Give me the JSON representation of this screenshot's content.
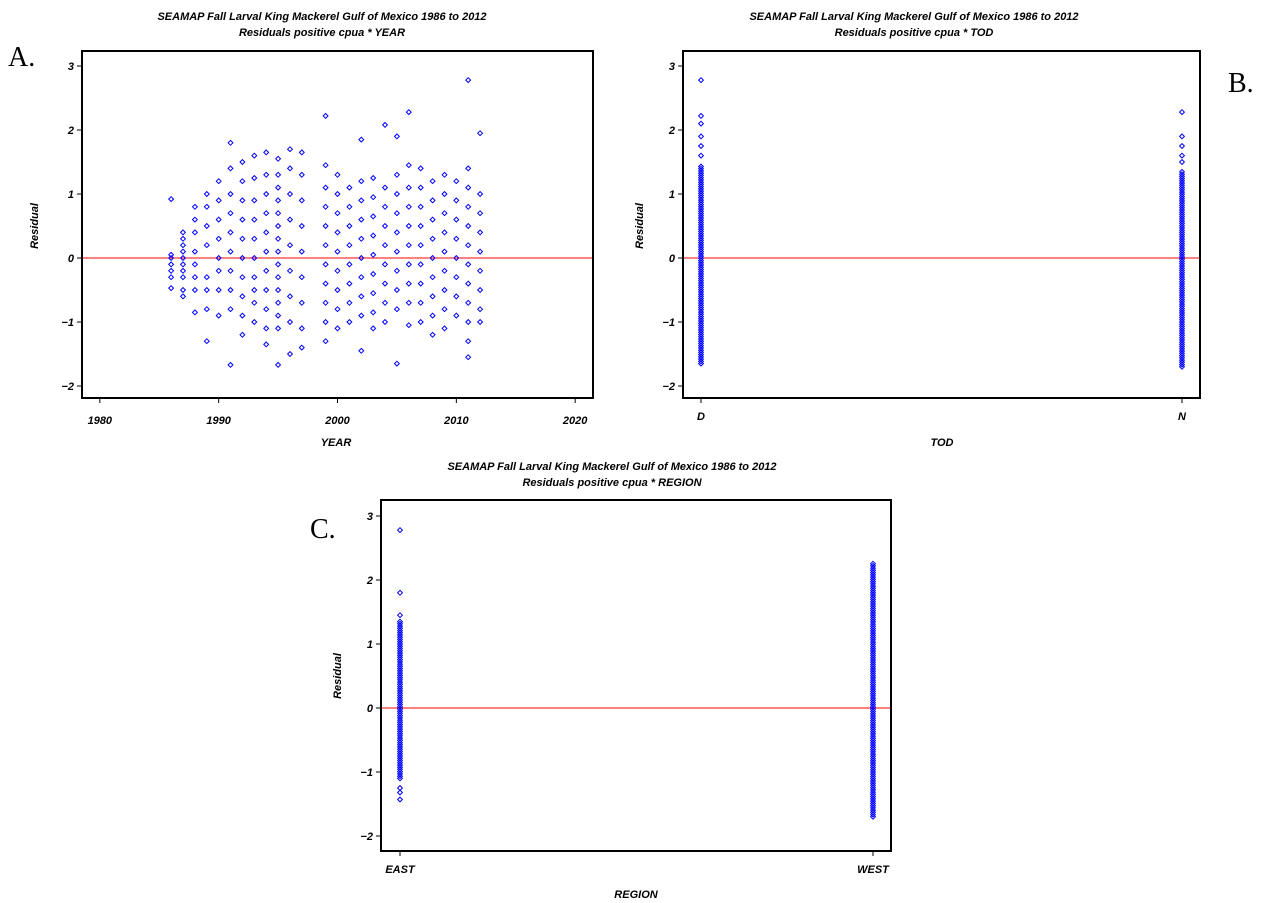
{
  "panel_labels": [
    "A.",
    "B.",
    "C."
  ],
  "colors": {
    "points": "#0000ff",
    "reference_line": "#ff0000",
    "frame": "#000000"
  },
  "chart_data": [
    {
      "type": "scatter",
      "title": "SEAMAP Fall Larval King Mackerel Gulf of Mexico 1986 to 2012",
      "subtitle": "Residuals positive cpua * YEAR",
      "xlabel": "YEAR",
      "ylabel": "Residual",
      "marker": "diamond-open",
      "xlim": [
        1978.5,
        2021.5
      ],
      "ylim": [
        -2.2,
        3.2
      ],
      "xticks": [
        1980,
        1990,
        2000,
        2010,
        2020
      ],
      "yticks": [
        -2,
        -1,
        0,
        1,
        2,
        3
      ],
      "reference_line_y": 0,
      "grid": false,
      "series": [
        {
          "points": [
            [
              1986,
              0.92
            ],
            [
              1986,
              0.05
            ],
            [
              1986,
              0.0
            ],
            [
              1986,
              -0.1
            ],
            [
              1986,
              -0.2
            ],
            [
              1986,
              -0.3
            ],
            [
              1986,
              -0.47
            ],
            [
              1987,
              0.4
            ],
            [
              1987,
              0.3
            ],
            [
              1987,
              0.2
            ],
            [
              1987,
              0.1
            ],
            [
              1987,
              0.0
            ],
            [
              1987,
              -0.1
            ],
            [
              1987,
              -0.2
            ],
            [
              1987,
              -0.3
            ],
            [
              1987,
              -0.5
            ],
            [
              1987,
              -0.6
            ],
            [
              1988,
              0.8
            ],
            [
              1988,
              0.6
            ],
            [
              1988,
              0.4
            ],
            [
              1988,
              0.1
            ],
            [
              1988,
              -0.1
            ],
            [
              1988,
              -0.3
            ],
            [
              1988,
              -0.5
            ],
            [
              1988,
              -0.85
            ],
            [
              1989,
              1.0
            ],
            [
              1989,
              0.8
            ],
            [
              1989,
              0.5
            ],
            [
              1989,
              0.2
            ],
            [
              1989,
              -0.3
            ],
            [
              1989,
              -0.5
            ],
            [
              1989,
              -0.8
            ],
            [
              1989,
              -1.3
            ],
            [
              1990,
              1.2
            ],
            [
              1990,
              0.9
            ],
            [
              1990,
              0.6
            ],
            [
              1990,
              0.3
            ],
            [
              1990,
              0.0
            ],
            [
              1990,
              -0.2
            ],
            [
              1990,
              -0.5
            ],
            [
              1990,
              -0.9
            ],
            [
              1991,
              1.8
            ],
            [
              1991,
              1.4
            ],
            [
              1991,
              1.0
            ],
            [
              1991,
              0.7
            ],
            [
              1991,
              0.4
            ],
            [
              1991,
              0.1
            ],
            [
              1991,
              -0.2
            ],
            [
              1991,
              -0.5
            ],
            [
              1991,
              -0.8
            ],
            [
              1991,
              -1.67
            ],
            [
              1992,
              1.5
            ],
            [
              1992,
              1.2
            ],
            [
              1992,
              0.9
            ],
            [
              1992,
              0.6
            ],
            [
              1992,
              0.3
            ],
            [
              1992,
              0.0
            ],
            [
              1992,
              -0.3
            ],
            [
              1992,
              -0.6
            ],
            [
              1992,
              -0.9
            ],
            [
              1992,
              -1.2
            ],
            [
              1993,
              1.6
            ],
            [
              1993,
              1.25
            ],
            [
              1993,
              0.9
            ],
            [
              1993,
              0.6
            ],
            [
              1993,
              0.3
            ],
            [
              1993,
              0.0
            ],
            [
              1993,
              -0.3
            ],
            [
              1993,
              -0.5
            ],
            [
              1993,
              -0.7
            ],
            [
              1993,
              -1.0
            ],
            [
              1994,
              1.65
            ],
            [
              1994,
              1.3
            ],
            [
              1994,
              1.0
            ],
            [
              1994,
              0.7
            ],
            [
              1994,
              0.4
            ],
            [
              1994,
              0.1
            ],
            [
              1994,
              -0.2
            ],
            [
              1994,
              -0.5
            ],
            [
              1994,
              -0.8
            ],
            [
              1994,
              -1.1
            ],
            [
              1994,
              -1.35
            ],
            [
              1995,
              1.55
            ],
            [
              1995,
              1.3
            ],
            [
              1995,
              1.1
            ],
            [
              1995,
              0.9
            ],
            [
              1995,
              0.7
            ],
            [
              1995,
              0.5
            ],
            [
              1995,
              0.3
            ],
            [
              1995,
              0.1
            ],
            [
              1995,
              -0.1
            ],
            [
              1995,
              -0.3
            ],
            [
              1995,
              -0.5
            ],
            [
              1995,
              -0.7
            ],
            [
              1995,
              -0.9
            ],
            [
              1995,
              -1.1
            ],
            [
              1995,
              -1.67
            ],
            [
              1996,
              1.7
            ],
            [
              1996,
              1.4
            ],
            [
              1996,
              1.0
            ],
            [
              1996,
              0.6
            ],
            [
              1996,
              0.2
            ],
            [
              1996,
              -0.2
            ],
            [
              1996,
              -0.6
            ],
            [
              1996,
              -1.0
            ],
            [
              1996,
              -1.5
            ],
            [
              1997,
              1.65
            ],
            [
              1997,
              1.3
            ],
            [
              1997,
              0.9
            ],
            [
              1997,
              0.5
            ],
            [
              1997,
              0.1
            ],
            [
              1997,
              -0.3
            ],
            [
              1997,
              -0.7
            ],
            [
              1997,
              -1.1
            ],
            [
              1997,
              -1.4
            ],
            [
              1999,
              2.22
            ],
            [
              1999,
              1.45
            ],
            [
              1999,
              1.1
            ],
            [
              1999,
              0.8
            ],
            [
              1999,
              0.5
            ],
            [
              1999,
              0.2
            ],
            [
              1999,
              -0.1
            ],
            [
              1999,
              -0.4
            ],
            [
              1999,
              -0.7
            ],
            [
              1999,
              -1.0
            ],
            [
              1999,
              -1.3
            ],
            [
              2000,
              1.3
            ],
            [
              2000,
              1.0
            ],
            [
              2000,
              0.7
            ],
            [
              2000,
              0.4
            ],
            [
              2000,
              0.1
            ],
            [
              2000,
              -0.2
            ],
            [
              2000,
              -0.5
            ],
            [
              2000,
              -0.8
            ],
            [
              2000,
              -1.1
            ],
            [
              2001,
              1.1
            ],
            [
              2001,
              0.8
            ],
            [
              2001,
              0.5
            ],
            [
              2001,
              0.2
            ],
            [
              2001,
              -0.1
            ],
            [
              2001,
              -0.4
            ],
            [
              2001,
              -0.7
            ],
            [
              2001,
              -1.0
            ],
            [
              2002,
              1.85
            ],
            [
              2002,
              1.2
            ],
            [
              2002,
              0.9
            ],
            [
              2002,
              0.6
            ],
            [
              2002,
              0.3
            ],
            [
              2002,
              0.0
            ],
            [
              2002,
              -0.3
            ],
            [
              2002,
              -0.6
            ],
            [
              2002,
              -0.9
            ],
            [
              2002,
              -1.45
            ],
            [
              2003,
              1.25
            ],
            [
              2003,
              0.95
            ],
            [
              2003,
              0.65
            ],
            [
              2003,
              0.35
            ],
            [
              2003,
              0.05
            ],
            [
              2003,
              -0.25
            ],
            [
              2003,
              -0.55
            ],
            [
              2003,
              -0.85
            ],
            [
              2003,
              -1.1
            ],
            [
              2004,
              2.08
            ],
            [
              2004,
              1.1
            ],
            [
              2004,
              0.8
            ],
            [
              2004,
              0.5
            ],
            [
              2004,
              0.2
            ],
            [
              2004,
              -0.1
            ],
            [
              2004,
              -0.4
            ],
            [
              2004,
              -0.7
            ],
            [
              2004,
              -1.0
            ],
            [
              2005,
              1.9
            ],
            [
              2005,
              1.3
            ],
            [
              2005,
              1.0
            ],
            [
              2005,
              0.7
            ],
            [
              2005,
              0.4
            ],
            [
              2005,
              0.1
            ],
            [
              2005,
              -0.2
            ],
            [
              2005,
              -0.5
            ],
            [
              2005,
              -0.8
            ],
            [
              2005,
              -1.65
            ],
            [
              2006,
              2.28
            ],
            [
              2006,
              1.45
            ],
            [
              2006,
              1.1
            ],
            [
              2006,
              0.8
            ],
            [
              2006,
              0.5
            ],
            [
              2006,
              0.2
            ],
            [
              2006,
              -0.1
            ],
            [
              2006,
              -0.4
            ],
            [
              2006,
              -0.7
            ],
            [
              2006,
              -1.05
            ],
            [
              2007,
              1.4
            ],
            [
              2007,
              1.1
            ],
            [
              2007,
              0.8
            ],
            [
              2007,
              0.5
            ],
            [
              2007,
              0.2
            ],
            [
              2007,
              -0.1
            ],
            [
              2007,
              -0.4
            ],
            [
              2007,
              -0.7
            ],
            [
              2007,
              -1.0
            ],
            [
              2008,
              1.2
            ],
            [
              2008,
              0.9
            ],
            [
              2008,
              0.6
            ],
            [
              2008,
              0.3
            ],
            [
              2008,
              0.0
            ],
            [
              2008,
              -0.3
            ],
            [
              2008,
              -0.6
            ],
            [
              2008,
              -0.9
            ],
            [
              2008,
              -1.2
            ],
            [
              2009,
              1.3
            ],
            [
              2009,
              1.0
            ],
            [
              2009,
              0.7
            ],
            [
              2009,
              0.4
            ],
            [
              2009,
              0.1
            ],
            [
              2009,
              -0.2
            ],
            [
              2009,
              -0.5
            ],
            [
              2009,
              -0.8
            ],
            [
              2009,
              -1.1
            ],
            [
              2010,
              1.2
            ],
            [
              2010,
              0.9
            ],
            [
              2010,
              0.6
            ],
            [
              2010,
              0.3
            ],
            [
              2010,
              0.0
            ],
            [
              2010,
              -0.3
            ],
            [
              2010,
              -0.6
            ],
            [
              2010,
              -0.9
            ],
            [
              2011,
              2.78
            ],
            [
              2011,
              1.4
            ],
            [
              2011,
              1.1
            ],
            [
              2011,
              0.8
            ],
            [
              2011,
              0.5
            ],
            [
              2011,
              0.2
            ],
            [
              2011,
              -0.1
            ],
            [
              2011,
              -0.4
            ],
            [
              2011,
              -0.7
            ],
            [
              2011,
              -1.0
            ],
            [
              2011,
              -1.3
            ],
            [
              2011,
              -1.55
            ],
            [
              2012,
              1.95
            ],
            [
              2012,
              1.0
            ],
            [
              2012,
              0.7
            ],
            [
              2012,
              0.4
            ],
            [
              2012,
              0.1
            ],
            [
              2012,
              -0.2
            ],
            [
              2012,
              -0.5
            ],
            [
              2012,
              -0.8
            ],
            [
              2012,
              -1.0
            ]
          ]
        }
      ]
    },
    {
      "type": "scatter",
      "title": "SEAMAP Fall Larval King Mackerel Gulf of Mexico 1986 to 2012",
      "subtitle": "Residuals positive cpua * TOD",
      "xlabel": "TOD",
      "ylabel": "Residual",
      "marker": "diamond-open",
      "categories": [
        "D",
        "N"
      ],
      "ylim": [
        -2.2,
        3.2
      ],
      "yticks": [
        -2,
        -1,
        0,
        1,
        2,
        3
      ],
      "reference_line_y": 0,
      "grid": false,
      "series": [
        {
          "category": "D",
          "ymin": -1.65,
          "ymax": 1.45,
          "outliers": [
            2.78,
            2.22,
            2.1,
            1.9,
            1.75,
            1.6
          ]
        },
        {
          "category": "N",
          "ymin": -1.7,
          "ymax": 1.35,
          "outliers": [
            2.28,
            1.9,
            1.75,
            1.6,
            1.5
          ]
        }
      ]
    },
    {
      "type": "scatter",
      "title": "SEAMAP Fall Larval King Mackerel Gulf of Mexico 1986 to 2012",
      "subtitle": "Residuals positive cpua * REGION",
      "xlabel": "REGION",
      "ylabel": "Residual",
      "marker": "diamond-open",
      "categories": [
        "EAST",
        "WEST"
      ],
      "ylim": [
        -2.2,
        3.2
      ],
      "yticks": [
        -2,
        -1,
        0,
        1,
        2,
        3
      ],
      "reference_line_y": 0,
      "grid": false,
      "series": [
        {
          "category": "EAST",
          "ymin": -1.1,
          "ymax": 1.35,
          "outliers": [
            2.78,
            1.8,
            1.45,
            -1.25,
            -1.32,
            -1.43
          ]
        },
        {
          "category": "WEST",
          "ymin": -1.7,
          "ymax": 2.28,
          "outliers": []
        }
      ]
    }
  ]
}
